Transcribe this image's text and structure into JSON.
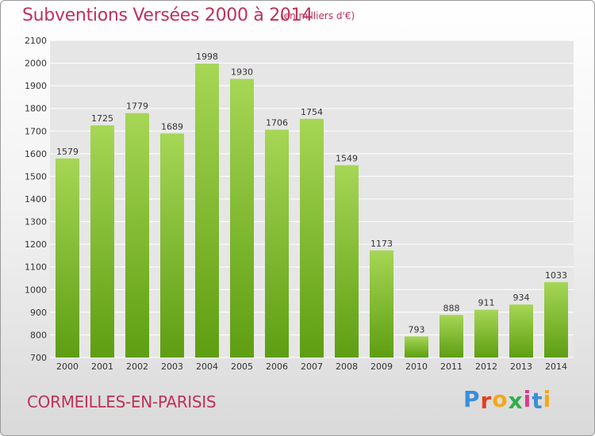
{
  "header": {
    "title": "Subventions Versées 2000 à 2014",
    "unit": "(en milliers d'€)"
  },
  "footer": {
    "city": "CORMEILLES-EN-PARISIS"
  },
  "logo": {
    "letters": [
      "P",
      "r",
      "o",
      "x",
      "i",
      "t",
      "i"
    ],
    "colors": [
      "#3a8fd6",
      "#e2401c",
      "#f2a81c",
      "#2fae4a",
      "#d93a8e",
      "#3a8fd6",
      "#f2a81c"
    ]
  },
  "colors": {
    "bar_top": "#a6d655",
    "bar_bottom": "#5e9e12",
    "axis_text": "#333333",
    "grid": "#ffffff",
    "accent": "#c0305a"
  },
  "chart_data": {
    "type": "bar",
    "title": "Subventions Versées 2000 à 2014",
    "categories": [
      "2000",
      "2001",
      "2002",
      "2003",
      "2004",
      "2005",
      "2006",
      "2007",
      "2008",
      "2009",
      "2010",
      "2011",
      "2012",
      "2013",
      "2014"
    ],
    "values": [
      1579,
      1725,
      1779,
      1689,
      1998,
      1930,
      1706,
      1754,
      1549,
      1173,
      793,
      888,
      911,
      934,
      1033
    ],
    "ylim": [
      700,
      2100
    ],
    "yticks": [
      700,
      800,
      900,
      1000,
      1100,
      1200,
      1300,
      1400,
      1500,
      1600,
      1700,
      1800,
      1900,
      2000,
      2100
    ],
    "grid": true,
    "data_labels": true
  }
}
